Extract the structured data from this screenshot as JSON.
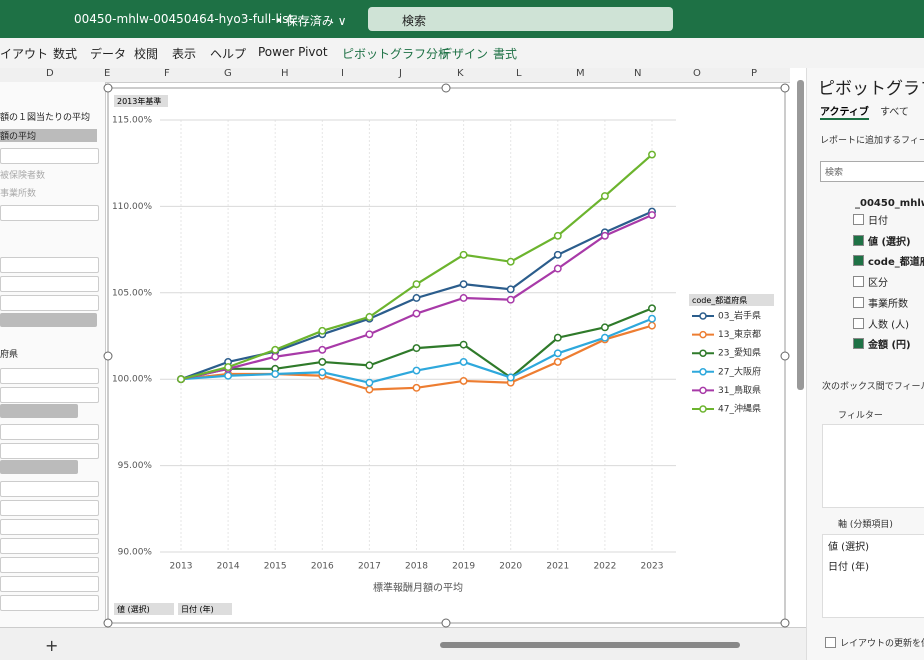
{
  "window": {
    "file_name": "00450-mhlw-00450464-hyo3-full-list···",
    "save_state": "• 保存済み ∨",
    "search": "検索"
  },
  "ribbon_tabs": [
    "イアウト",
    "数式",
    "データ",
    "校閲",
    "表示",
    "ヘルプ",
    "Power Pivot",
    "ピボットグラフ分析",
    "デザイン",
    "書式"
  ],
  "columns": [
    "D",
    "E",
    "F",
    "G",
    "H",
    "I",
    "J",
    "K",
    "L",
    "M",
    "N",
    "O",
    "P"
  ],
  "left_pane": {
    "items": [
      "額の１図当たりの平均",
      "額の平均",
      "被保険者数",
      "事業所数",
      "府県"
    ]
  },
  "chart_data": {
    "type": "line",
    "filter_button": "2013年基準",
    "x_label": "標準報酬月額の平均",
    "legend_title": "code_都道府県",
    "axis_buttons": [
      "値 (選択)",
      "日付 (年)"
    ],
    "grid": true,
    "categories": [
      "2013",
      "2014",
      "2015",
      "2016",
      "2017",
      "2018",
      "2019",
      "2020",
      "2021",
      "2022",
      "2023"
    ],
    "ylim": [
      90,
      115
    ],
    "yticks": [
      {
        "value": 90,
        "label": "90.00%"
      },
      {
        "value": 95,
        "label": "95.00%"
      },
      {
        "value": 100,
        "label": "100.00%"
      },
      {
        "value": 105,
        "label": "105.00%"
      },
      {
        "value": 110,
        "label": "110.00%"
      },
      {
        "value": 115,
        "label": "115.00%"
      }
    ],
    "series": [
      {
        "name": "03_岩手県",
        "color": "#2b5d8c",
        "values": [
          100,
          101.0,
          101.6,
          102.6,
          103.5,
          104.7,
          105.5,
          105.2,
          107.2,
          108.5,
          109.7
        ]
      },
      {
        "name": "13_東京都",
        "color": "#ed7d31",
        "values": [
          100,
          100.3,
          100.3,
          100.2,
          99.4,
          99.5,
          99.9,
          99.8,
          101.0,
          102.3,
          103.1
        ]
      },
      {
        "name": "23_愛知県",
        "color": "#2f7a2a",
        "values": [
          100,
          100.6,
          100.6,
          101.0,
          100.8,
          101.8,
          102.0,
          100.1,
          102.4,
          103.0,
          104.1
        ]
      },
      {
        "name": "27_大阪府",
        "color": "#2ea8dc",
        "values": [
          100,
          100.2,
          100.3,
          100.4,
          99.8,
          100.5,
          101.0,
          100.1,
          101.5,
          102.4,
          103.5
        ]
      },
      {
        "name": "31_鳥取県",
        "color": "#a83aa8",
        "values": [
          100,
          100.6,
          101.3,
          101.7,
          102.6,
          103.8,
          104.7,
          104.6,
          106.4,
          108.3,
          109.5
        ]
      },
      {
        "name": "47_沖縄県",
        "color": "#6cb42e",
        "values": [
          100,
          100.7,
          101.7,
          102.8,
          103.6,
          105.5,
          107.2,
          106.8,
          108.3,
          110.6,
          113.0
        ]
      }
    ]
  },
  "field_list": {
    "title": "ピボットグラフの",
    "tabs": [
      "アクティブ",
      "すべて"
    ],
    "prompt": "レポートに追加するフィール",
    "search": "検索",
    "table": "_00450_mhlw",
    "fields": [
      {
        "label": "日付",
        "checked": false
      },
      {
        "label": "値 (選択)",
        "checked": true
      },
      {
        "label": "code_都道府",
        "checked": true
      },
      {
        "label": "区分",
        "checked": false
      },
      {
        "label": "事業所数",
        "checked": false
      },
      {
        "label": "人数 (人)",
        "checked": false
      },
      {
        "label": "金額 (円)",
        "checked": true
      }
    ],
    "areas_prompt": "次のボックス間でフィールド",
    "filter_area": "フィルター",
    "axis_area": "軸 (分類項目)",
    "axis_fields": [
      "値 (選択)",
      "日付 (年)"
    ],
    "defer": "レイアウトの更新を保"
  }
}
